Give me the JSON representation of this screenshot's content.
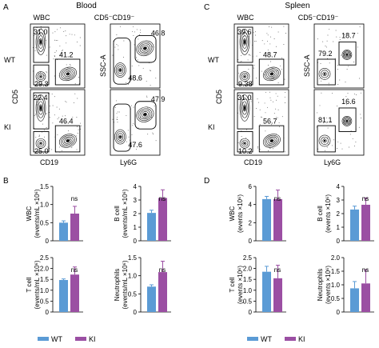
{
  "colors": {
    "wt": "#5b9bd5",
    "ki": "#9b4fa3",
    "frame": "#000000"
  },
  "panel_labels": {
    "a": "A",
    "b": "B",
    "c": "C",
    "d": "D"
  },
  "headers": {
    "blood": "Blood",
    "spleen": "Spleen"
  },
  "flow": {
    "wbc_title": "WBC",
    "gate_title": "CD5⁻CD19⁻",
    "row_wt": "WT",
    "row_ki": "KI",
    "axis": {
      "cd5": "CD5",
      "cd19": "CD19",
      "ssc": "SSC-A",
      "ly6g": "Ly6G"
    },
    "blood": {
      "wt": {
        "wbc": [
          "31.0",
          "29.3",
          "41.2"
        ],
        "gate": [
          "46.8",
          "48.6"
        ]
      },
      "ki": {
        "wbc": [
          "22.4",
          "25.0",
          "46.4"
        ],
        "gate": [
          "47.9",
          "47.6"
        ]
      }
    },
    "spleen": {
      "wt": {
        "wbc": [
          "39.6",
          "9.38",
          "48.7"
        ],
        "gate": [
          "79.2",
          "18.7"
        ]
      },
      "ki": {
        "wbc": [
          "31.0",
          "10.2",
          "56.7"
        ],
        "gate": [
          "81.1",
          "16.6"
        ]
      }
    }
  },
  "legend": {
    "wt": "WT",
    "ki": "KI"
  },
  "chart_data": [
    {
      "type": "bar",
      "panel": "B",
      "ylabel": [
        "WBC",
        "(events/mL ×10⁶)"
      ],
      "categories": [
        "WT",
        "KI"
      ],
      "series": [
        {
          "values": [
            0.5,
            0.75
          ]
        }
      ],
      "errors": [
        0.05,
        0.2
      ],
      "ylim": [
        0,
        1.5
      ],
      "ticks": [
        "0",
        "0.5",
        "1.0",
        "1.5"
      ],
      "sig": "ns"
    },
    {
      "type": "bar",
      "panel": "B",
      "ylabel": [
        "B cell",
        "(events/mL ×10⁶)"
      ],
      "categories": [
        "WT",
        "KI"
      ],
      "series": [
        {
          "values": [
            2.05,
            3.15
          ]
        }
      ],
      "errors": [
        0.2,
        0.6
      ],
      "ylim": [
        0,
        4
      ],
      "ticks": [
        "0",
        "1",
        "2",
        "3",
        "4"
      ],
      "sig": "ns"
    },
    {
      "type": "bar",
      "panel": "B",
      "ylabel": [
        "T cell",
        "(events/mL ×10⁶)"
      ],
      "categories": [
        "WT",
        "KI"
      ],
      "series": [
        {
          "values": [
            1.47,
            1.72
          ]
        }
      ],
      "errors": [
        0.05,
        0.35
      ],
      "ylim": [
        0,
        2.5
      ],
      "ticks": [
        "0",
        "0.5",
        "1.0",
        "1.5",
        "2.0",
        "2.5"
      ],
      "sig": "ns"
    },
    {
      "type": "bar",
      "panel": "B",
      "ylabel": [
        "Neutrophils",
        "(events/mL ×10⁶)"
      ],
      "categories": [
        "WT",
        "KI"
      ],
      "series": [
        {
          "values": [
            0.7,
            1.1
          ]
        }
      ],
      "errors": [
        0.05,
        0.3
      ],
      "ylim": [
        0,
        1.5
      ],
      "ticks": [
        "0",
        "0.5",
        "1.0",
        "1.5"
      ],
      "sig": "ns"
    },
    {
      "type": "bar",
      "panel": "D",
      "ylabel": [
        "WBC",
        "(events ×10⁶)"
      ],
      "categories": [
        "WT",
        "KI"
      ],
      "series": [
        {
          "values": [
            4.6,
            4.6
          ]
        }
      ],
      "errors": [
        0.3,
        1.0
      ],
      "ylim": [
        0,
        6
      ],
      "ticks": [
        "0",
        "2",
        "4",
        "6"
      ],
      "sig": "ns"
    },
    {
      "type": "bar",
      "panel": "D",
      "ylabel": [
        "B cell",
        "(events ×10⁶)"
      ],
      "categories": [
        "WT",
        "KI"
      ],
      "series": [
        {
          "values": [
            2.3,
            2.65
          ]
        }
      ],
      "errors": [
        0.25,
        0.5
      ],
      "ylim": [
        0,
        4
      ],
      "ticks": [
        "0",
        "1",
        "2",
        "3",
        "4"
      ],
      "sig": "ns"
    },
    {
      "type": "bar",
      "panel": "D",
      "ylabel": [
        "T cell",
        "(events ×10⁶)"
      ],
      "categories": [
        "WT",
        "KI"
      ],
      "series": [
        {
          "values": [
            1.85,
            1.55
          ]
        }
      ],
      "errors": [
        0.25,
        0.6
      ],
      "ylim": [
        0,
        2.5
      ],
      "ticks": [
        "0",
        "0.5",
        "1.0",
        "1.5",
        "2.0",
        "2.5"
      ],
      "sig": "ns"
    },
    {
      "type": "bar",
      "panel": "D",
      "ylabel": [
        "Neutrophils",
        "(events ×10⁶)"
      ],
      "categories": [
        "WT",
        "KI"
      ],
      "series": [
        {
          "values": [
            0.87,
            1.05
          ]
        }
      ],
      "errors": [
        0.25,
        0.5
      ],
      "ylim": [
        0,
        2.0
      ],
      "ticks": [
        "0",
        "0.5",
        "1.0",
        "1.5",
        "2.0"
      ],
      "sig": "ns"
    }
  ]
}
